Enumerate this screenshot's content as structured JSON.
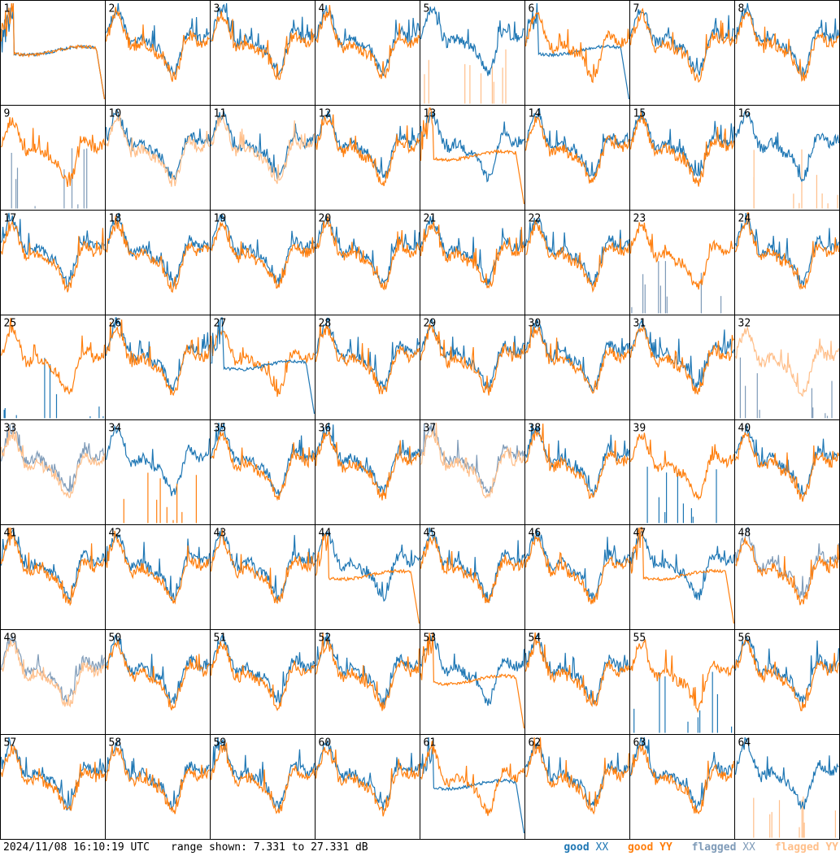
{
  "chart_data": {
    "type": "line",
    "timestamp": "2024/11/08 16:10:19 UTC",
    "range_text": "range shown: 7.331 to 27.331 dB",
    "ylim": [
      7.331,
      27.331
    ],
    "grid": {
      "rows": 8,
      "cols": 8
    },
    "series": [
      {
        "name": "good XX",
        "color": "#1f77b4"
      },
      {
        "name": "good YY",
        "color": "#ff7f0e"
      },
      {
        "name": "flagged XX",
        "color": "#7f9bb8"
      },
      {
        "name": "flagged YY",
        "color": "#ffbf8a"
      }
    ],
    "legend_labels": [
      {
        "prefix": "good ",
        "pol": "XX",
        "color": "#1f77b4"
      },
      {
        "prefix": "good ",
        "pol": "YY",
        "color": "#ff7f0e"
      },
      {
        "prefix": "flagged ",
        "pol": "XX",
        "color": "#7f9bb8"
      },
      {
        "prefix": "flagged ",
        "pol": "YY",
        "color": "#ffbf8a"
      }
    ],
    "panels": [
      {
        "label": "1",
        "xx": "drop",
        "yy": "drop",
        "order": "xy"
      },
      {
        "label": "2",
        "xx": "good",
        "yy": "good",
        "order": "xy"
      },
      {
        "label": "3",
        "xx": "good",
        "yy": "good",
        "order": "xy"
      },
      {
        "label": "4",
        "xx": "good",
        "yy": "good",
        "order": "xy"
      },
      {
        "label": "5",
        "xx": "good",
        "yy": "spikes_flagged",
        "order": "yx"
      },
      {
        "label": "6",
        "xx": "drop",
        "yy": "good",
        "order": "xy"
      },
      {
        "label": "7",
        "xx": "good",
        "yy": "good",
        "order": "xy"
      },
      {
        "label": "8",
        "xx": "good",
        "yy": "good",
        "order": "xy"
      },
      {
        "label": "9",
        "xx": "spikes_flagged",
        "yy": "good",
        "order": "xy"
      },
      {
        "label": "10",
        "xx": "good",
        "yy": "flagged",
        "order": "xy"
      },
      {
        "label": "11",
        "xx": "good",
        "yy": "flagged",
        "order": "xy"
      },
      {
        "label": "12",
        "xx": "good",
        "yy": "good",
        "order": "xy"
      },
      {
        "label": "13",
        "xx": "good",
        "yy": "drop",
        "order": "xy"
      },
      {
        "label": "14",
        "xx": "good",
        "yy": "good",
        "order": "xy"
      },
      {
        "label": "15",
        "xx": "good",
        "yy": "good",
        "order": "xy"
      },
      {
        "label": "16",
        "xx": "good",
        "yy": "spikes_flagged",
        "order": "yx"
      },
      {
        "label": "17",
        "xx": "good",
        "yy": "good",
        "order": "xy"
      },
      {
        "label": "18",
        "xx": "good",
        "yy": "good",
        "order": "xy"
      },
      {
        "label": "19",
        "xx": "good",
        "yy": "good",
        "order": "xy"
      },
      {
        "label": "20",
        "xx": "good",
        "yy": "good",
        "order": "xy"
      },
      {
        "label": "21",
        "xx": "good",
        "yy": "good",
        "order": "xy"
      },
      {
        "label": "22",
        "xx": "good",
        "yy": "good",
        "order": "xy"
      },
      {
        "label": "23",
        "xx": "spikes_flagged",
        "yy": "good",
        "order": "xy"
      },
      {
        "label": "24",
        "xx": "good",
        "yy": "good",
        "order": "xy"
      },
      {
        "label": "25",
        "xx": "spikes_good",
        "yy": "good",
        "order": "xy"
      },
      {
        "label": "26",
        "xx": "good",
        "yy": "good",
        "order": "xy"
      },
      {
        "label": "27",
        "xx": "drop",
        "yy": "good",
        "order": "yx"
      },
      {
        "label": "28",
        "xx": "good",
        "yy": "good",
        "order": "xy"
      },
      {
        "label": "29",
        "xx": "good",
        "yy": "good",
        "order": "xy"
      },
      {
        "label": "30",
        "xx": "good",
        "yy": "good",
        "order": "xy"
      },
      {
        "label": "31",
        "xx": "good",
        "yy": "good",
        "order": "xy"
      },
      {
        "label": "32",
        "xx": "spikes_flagged",
        "yy": "flagged",
        "order": "xy"
      },
      {
        "label": "33",
        "xx": "flagged",
        "yy": "flagged",
        "order": "xy"
      },
      {
        "label": "34",
        "xx": "good",
        "yy": "spikes_good",
        "order": "xy"
      },
      {
        "label": "35",
        "xx": "good",
        "yy": "good",
        "order": "xy"
      },
      {
        "label": "36",
        "xx": "good",
        "yy": "good",
        "order": "xy"
      },
      {
        "label": "37",
        "xx": "flagged",
        "yy": "flagged",
        "order": "xy"
      },
      {
        "label": "38",
        "xx": "good",
        "yy": "good",
        "order": "xy"
      },
      {
        "label": "39",
        "xx": "spikes_good",
        "yy": "good",
        "order": "xy"
      },
      {
        "label": "40",
        "xx": "good",
        "yy": "good",
        "order": "xy"
      },
      {
        "label": "41",
        "xx": "good",
        "yy": "good",
        "order": "xy"
      },
      {
        "label": "42",
        "xx": "good",
        "yy": "good",
        "order": "xy"
      },
      {
        "label": "43",
        "xx": "good",
        "yy": "good",
        "order": "xy"
      },
      {
        "label": "44",
        "xx": "good",
        "yy": "drop",
        "order": "xy"
      },
      {
        "label": "45",
        "xx": "good",
        "yy": "good",
        "order": "xy"
      },
      {
        "label": "46",
        "xx": "good",
        "yy": "good",
        "order": "xy"
      },
      {
        "label": "47",
        "xx": "good",
        "yy": "drop",
        "order": "xy"
      },
      {
        "label": "48",
        "xx": "flagged",
        "yy": "good",
        "order": "xy"
      },
      {
        "label": "49",
        "xx": "flagged",
        "yy": "flagged",
        "order": "xy"
      },
      {
        "label": "50",
        "xx": "good",
        "yy": "good",
        "order": "xy"
      },
      {
        "label": "51",
        "xx": "good",
        "yy": "good",
        "order": "xy"
      },
      {
        "label": "52",
        "xx": "good",
        "yy": "good",
        "order": "xy"
      },
      {
        "label": "53",
        "xx": "good",
        "yy": "drop",
        "order": "xy"
      },
      {
        "label": "54",
        "xx": "good",
        "yy": "good",
        "order": "xy"
      },
      {
        "label": "55",
        "xx": "spikes_good",
        "yy": "good",
        "order": "xy"
      },
      {
        "label": "56",
        "xx": "good",
        "yy": "good",
        "order": "xy"
      },
      {
        "label": "57",
        "xx": "good",
        "yy": "good",
        "order": "xy"
      },
      {
        "label": "58",
        "xx": "good",
        "yy": "good",
        "order": "xy"
      },
      {
        "label": "59",
        "xx": "good",
        "yy": "good",
        "order": "xy"
      },
      {
        "label": "60",
        "xx": "good",
        "yy": "good",
        "order": "xy"
      },
      {
        "label": "61",
        "xx": "drop",
        "yy": "good",
        "order": "xy"
      },
      {
        "label": "62",
        "xx": "good",
        "yy": "good",
        "order": "xy"
      },
      {
        "label": "63",
        "xx": "good",
        "yy": "good",
        "order": "xy"
      },
      {
        "label": "64",
        "xx": "good",
        "yy": "spikes_flagged",
        "order": "yx"
      }
    ]
  }
}
